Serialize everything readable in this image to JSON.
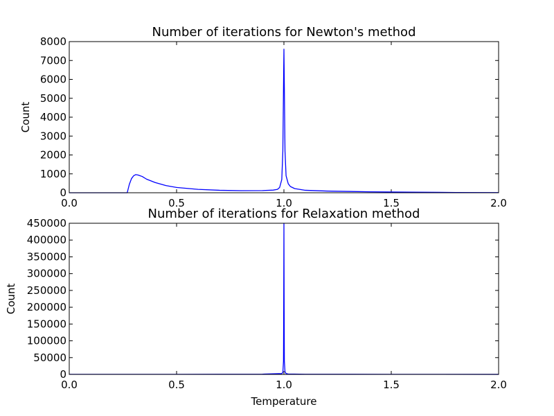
{
  "chart_data": [
    {
      "type": "line",
      "title": "Number of iterations for Newton's method",
      "xlabel": "",
      "ylabel": "Count",
      "xlim": [
        0.0,
        2.0
      ],
      "ylim": [
        0,
        8000
      ],
      "x_ticks": [
        "0.0",
        "0.5",
        "1.0",
        "1.5",
        "2.0"
      ],
      "y_ticks": [
        "0",
        "1000",
        "2000",
        "3000",
        "4000",
        "5000",
        "6000",
        "7000",
        "8000"
      ],
      "grid": false,
      "series": [
        {
          "color": "#0000ff",
          "x": [
            0.0,
            0.25,
            0.27,
            0.28,
            0.29,
            0.3,
            0.31,
            0.32,
            0.34,
            0.36,
            0.4,
            0.45,
            0.5,
            0.6,
            0.7,
            0.8,
            0.9,
            0.95,
            0.97,
            0.98,
            0.99,
            0.995,
            0.998,
            1.0,
            1.002,
            1.005,
            1.01,
            1.02,
            1.03,
            1.05,
            1.1,
            1.2,
            1.4,
            1.6,
            1.8,
            2.0
          ],
          "y": [
            0,
            0,
            0,
            450,
            750,
            900,
            960,
            940,
            860,
            720,
            540,
            380,
            280,
            180,
            130,
            110,
            115,
            140,
            180,
            280,
            700,
            2200,
            5500,
            7600,
            5500,
            2200,
            900,
            480,
            330,
            220,
            130,
            90,
            50,
            30,
            15,
            10
          ]
        }
      ]
    },
    {
      "type": "line",
      "title": "Number of iterations for Relaxation method",
      "xlabel": "Temperature",
      "ylabel": "Count",
      "xlim": [
        0.0,
        2.0
      ],
      "ylim": [
        0,
        450000
      ],
      "x_ticks": [
        "0.0",
        "0.5",
        "1.0",
        "1.5",
        "2.0"
      ],
      "y_ticks": [
        "0",
        "50000",
        "100000",
        "150000",
        "200000",
        "250000",
        "300000",
        "350000",
        "400000",
        "450000"
      ],
      "grid": false,
      "series": [
        {
          "color": "#0000ff",
          "x": [
            0.0,
            0.5,
            0.9,
            0.99,
            0.995,
            0.998,
            0.999,
            1.0,
            1.001,
            1.002,
            1.005,
            1.01,
            1.02,
            1.1,
            1.5,
            2.0
          ],
          "y": [
            200,
            300,
            800,
            2500,
            6000,
            40000,
            200000,
            450000,
            200000,
            40000,
            8000,
            2500,
            1200,
            500,
            250,
            150
          ]
        }
      ]
    }
  ]
}
